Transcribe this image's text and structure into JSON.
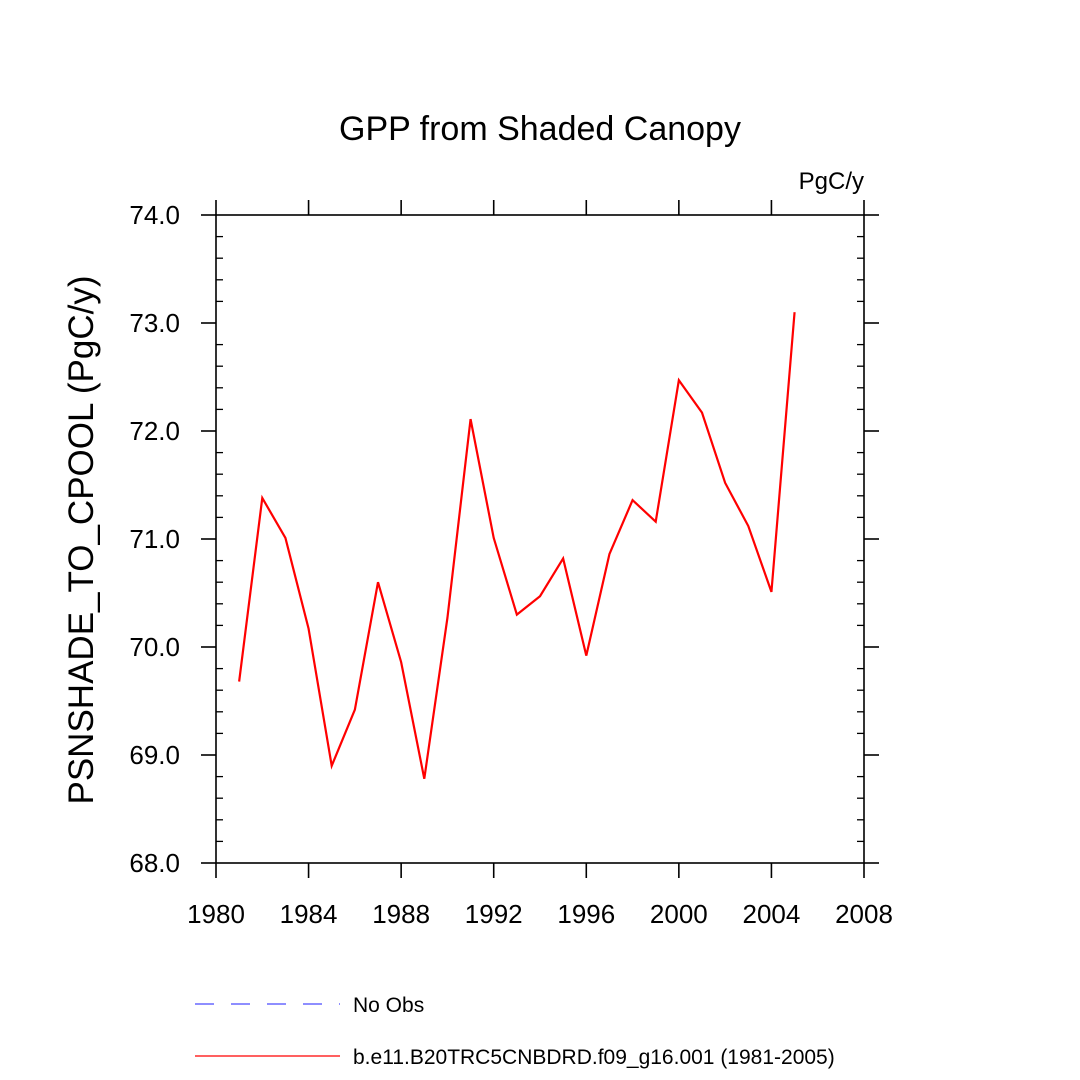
{
  "chart_data": {
    "type": "line",
    "title": "GPP from Shaded Canopy",
    "units_label": "PgC/y",
    "xlabel": "",
    "ylabel": "PSNSHADE_TO_CPOOL  (PgC/y)",
    "xlim": [
      1980,
      2008
    ],
    "ylim": [
      68.0,
      74.0
    ],
    "x_ticks": [
      1980,
      1984,
      1988,
      1992,
      1996,
      2000,
      2004,
      2008
    ],
    "x_tick_labels": [
      "1980",
      "1984",
      "1988",
      "1992",
      "1996",
      "2000",
      "2004",
      "2008"
    ],
    "y_ticks": [
      68.0,
      69.0,
      70.0,
      71.0,
      72.0,
      73.0,
      74.0
    ],
    "y_tick_labels": [
      "68.0",
      "69.0",
      "70.0",
      "71.0",
      "72.0",
      "73.0",
      "74.0"
    ],
    "grid": false,
    "legend_position": "bottom",
    "series": [
      {
        "name": "No Obs",
        "color": "#4a4aff",
        "style": "dashed",
        "x": [],
        "values": []
      },
      {
        "name": "b.e11.B20TRC5CNBDRD.f09_g16.001 (1981-2005)",
        "color": "#ff0000",
        "style": "solid",
        "x": [
          1981,
          1982,
          1983,
          1984,
          1985,
          1986,
          1987,
          1988,
          1989,
          1990,
          1991,
          1992,
          1993,
          1994,
          1995,
          1996,
          1997,
          1998,
          1999,
          2000,
          2001,
          2002,
          2003,
          2004,
          2005
        ],
        "values": [
          69.68,
          71.38,
          71.01,
          70.17,
          68.9,
          69.42,
          70.6,
          69.86,
          68.78,
          70.27,
          72.11,
          71.01,
          70.3,
          70.47,
          70.82,
          69.92,
          70.86,
          71.36,
          71.16,
          72.47,
          72.17,
          71.52,
          71.12,
          70.51,
          73.1
        ]
      }
    ]
  }
}
